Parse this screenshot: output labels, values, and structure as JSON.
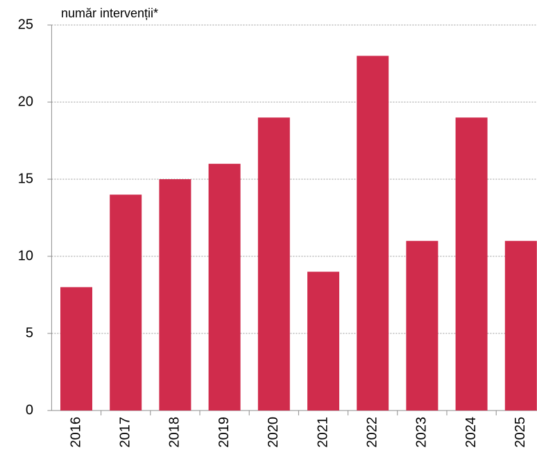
{
  "chart_data": {
    "type": "bar",
    "y_axis_label": "număr intervenții*",
    "categories": [
      "2016",
      "2017",
      "2018",
      "2019",
      "2020",
      "2021",
      "2022",
      "2023",
      "2024",
      "2025"
    ],
    "values": [
      8,
      14,
      15,
      16,
      19,
      9,
      23,
      11,
      19,
      11
    ],
    "color": "#d02c4c",
    "ylim": [
      0,
      25
    ],
    "yticks": [
      0,
      5,
      10,
      15,
      20,
      25
    ],
    "grid": true
  }
}
